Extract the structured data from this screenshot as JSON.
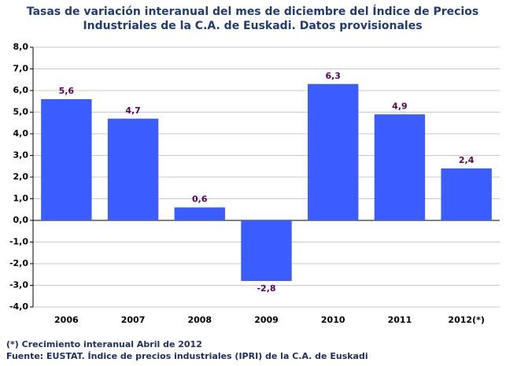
{
  "chart_data": {
    "type": "bar",
    "title": [
      "Tasas de variación interanual del mes de diciembre del Índice de Precios",
      "Industriales de la C.A. de Euskadi. Datos provisionales"
    ],
    "categories": [
      "2006",
      "2007",
      "2008",
      "2009",
      "2010",
      "2011",
      "2012(*)"
    ],
    "values": [
      5.6,
      4.7,
      0.6,
      -2.8,
      6.3,
      4.9,
      2.4
    ],
    "value_labels": [
      "5,6",
      "4,7",
      "0,6",
      "-2,8",
      "6,3",
      "4,9",
      "2,4"
    ],
    "color": "#3b5cff",
    "ylim": [
      -4,
      8
    ],
    "yticks": [
      {
        "value": -4,
        "label": "-4,0"
      },
      {
        "value": -3,
        "label": "-3,0"
      },
      {
        "value": -2,
        "label": "-2,0"
      },
      {
        "value": -1,
        "label": "-1,0"
      },
      {
        "value": 0,
        "label": "0,0"
      },
      {
        "value": 1,
        "label": "1,0"
      },
      {
        "value": 2,
        "label": "2,0"
      },
      {
        "value": 3,
        "label": "3,0"
      },
      {
        "value": 4,
        "label": "4,0"
      },
      {
        "value": 5,
        "label": "5,0"
      },
      {
        "value": 6,
        "label": "6,0"
      },
      {
        "value": 7,
        "label": "7,0"
      },
      {
        "value": 8,
        "label": "8,0"
      }
    ],
    "grid": true,
    "notes": [
      "(*) Crecimiento interanual Abril de 2012",
      "Fuente: EUSTAT. Índice de precios industriales (IPRI) de la C.A. de Euskadi"
    ]
  }
}
